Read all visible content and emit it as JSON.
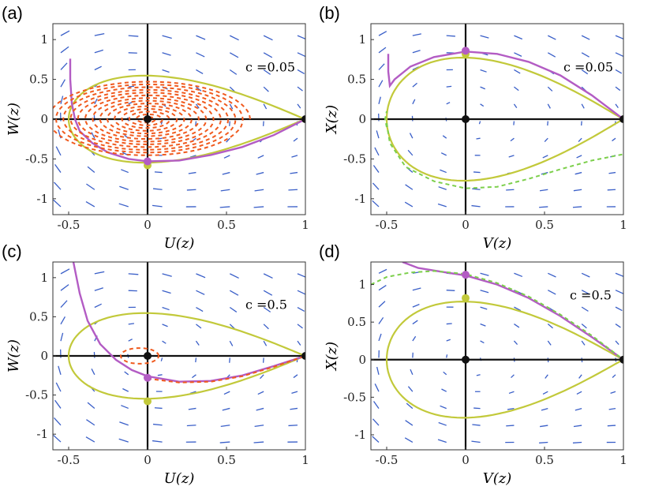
{
  "chart_data": [
    {
      "type": "phase-portrait",
      "panel_label": "(a)",
      "xlabel": "U(z)",
      "ylabel": "W(z)",
      "xlim": [
        -0.6,
        1.0
      ],
      "ylim": [
        -1.2,
        1.2
      ],
      "xticks": [
        {
          "v": -0.5,
          "t": "-0.5"
        },
        {
          "v": 0,
          "t": "0"
        },
        {
          "v": 0.5,
          "t": "0.5"
        },
        {
          "v": 1,
          "t": "1"
        }
      ],
      "yticks": [
        {
          "v": -1,
          "t": "-1"
        },
        {
          "v": -0.5,
          "t": "-0.5"
        },
        {
          "v": 0,
          "t": "0"
        },
        {
          "v": 0.5,
          "t": "0.5"
        },
        {
          "v": 1,
          "t": "1"
        }
      ],
      "annotation": {
        "text": "c =0.05",
        "x": 0.62,
        "y": 0.6
      },
      "field": {
        "x0": -0.55,
        "x1": 0.95,
        "nx": 8,
        "y0": -1.1,
        "y1": 1.05,
        "ny": 11,
        "color": "#3a5fc8",
        "scale": 0.9
      },
      "homoclinic": {
        "name": "homoclinic loop",
        "color": "#c2c93a",
        "half_height": 0.58
      },
      "curves": [
        {
          "name": "trajectory",
          "color": "#b35cc4",
          "dash": false,
          "points": [
            [
              -0.49,
              0.76
            ],
            [
              -0.49,
              0.5
            ],
            [
              -0.48,
              0.2
            ],
            [
              -0.46,
              0.0
            ],
            [
              -0.43,
              -0.15
            ],
            [
              -0.35,
              -0.3
            ],
            [
              -0.25,
              -0.42
            ],
            [
              -0.12,
              -0.5
            ],
            [
              0,
              -0.53
            ],
            [
              0.2,
              -0.52
            ],
            [
              0.4,
              -0.45
            ],
            [
              0.6,
              -0.35
            ],
            [
              0.8,
              -0.2
            ],
            [
              1,
              0
            ]
          ]
        },
        {
          "name": "spiral",
          "color": "#f05a1e",
          "dash": true,
          "spiral": {
            "turns": 14,
            "rx": 0.65,
            "ry": 0.48,
            "cx": 0.0,
            "cy": 0.0
          }
        }
      ],
      "points": [
        {
          "x": 0,
          "y": 0,
          "color": "#111"
        },
        {
          "x": 1,
          "y": 0,
          "color": "#111"
        },
        {
          "x": 0,
          "y": -0.58,
          "color": "#c2c93a"
        },
        {
          "x": 0,
          "y": -0.53,
          "color": "#b35cc4"
        }
      ]
    },
    {
      "type": "phase-portrait",
      "panel_label": "(b)",
      "xlabel": "V(z)",
      "ylabel": "X(z)",
      "xlim": [
        -0.6,
        1.0
      ],
      "ylim": [
        -1.2,
        1.2
      ],
      "xticks": [
        {
          "v": -0.5,
          "t": "-0.5"
        },
        {
          "v": 0,
          "t": "0"
        },
        {
          "v": 0.5,
          "t": "0.5"
        },
        {
          "v": 1,
          "t": "1"
        }
      ],
      "yticks": [
        {
          "v": -1,
          "t": "-1"
        },
        {
          "v": -0.5,
          "t": "-0.5"
        },
        {
          "v": 0,
          "t": "0"
        },
        {
          "v": 0.5,
          "t": "0.5"
        },
        {
          "v": 1,
          "t": "1"
        }
      ],
      "annotation": {
        "text": "c =0.05",
        "x": 0.62,
        "y": 0.6
      },
      "field": {
        "x0": -0.55,
        "x1": 0.95,
        "nx": 8,
        "y0": -1.1,
        "y1": 1.05,
        "ny": 11,
        "color": "#3a5fc8",
        "scale": 0.8
      },
      "homoclinic": {
        "name": "homoclinic loop",
        "color": "#c2c93a",
        "half_height": 0.82
      },
      "curves": [
        {
          "name": "trajectory",
          "color": "#b35cc4",
          "dash": false,
          "points": [
            [
              -0.49,
              0.82
            ],
            [
              -0.49,
              0.6
            ],
            [
              -0.48,
              0.42
            ],
            [
              -0.45,
              0.5
            ],
            [
              -0.35,
              0.66
            ],
            [
              -0.2,
              0.78
            ],
            [
              0,
              0.85
            ],
            [
              0.2,
              0.82
            ],
            [
              0.4,
              0.72
            ],
            [
              0.6,
              0.55
            ],
            [
              0.8,
              0.3
            ],
            [
              1,
              0
            ]
          ]
        },
        {
          "name": "dashed-branch-top",
          "color": "#7ccf4b",
          "dash": true,
          "points": [
            [
              -0.5,
              -0.1
            ],
            [
              -0.51,
              0.0
            ],
            [
              -0.5,
              0.1
            ]
          ]
        },
        {
          "name": "dashed-branch-bottom",
          "color": "#7ccf4b",
          "dash": true,
          "points": [
            [
              -0.5,
              -0.05
            ],
            [
              -0.48,
              -0.3
            ],
            [
              -0.38,
              -0.6
            ],
            [
              -0.2,
              -0.78
            ],
            [
              0,
              -0.87
            ],
            [
              0.2,
              -0.85
            ],
            [
              0.4,
              -0.75
            ],
            [
              0.6,
              -0.63
            ],
            [
              0.8,
              -0.52
            ],
            [
              1,
              -0.44
            ]
          ]
        }
      ],
      "points": [
        {
          "x": 0,
          "y": 0,
          "color": "#111"
        },
        {
          "x": 1,
          "y": 0,
          "color": "#111"
        },
        {
          "x": 0,
          "y": 0.82,
          "color": "#c2c93a"
        },
        {
          "x": 0,
          "y": 0.86,
          "color": "#b35cc4"
        }
      ]
    },
    {
      "type": "phase-portrait",
      "panel_label": "(c)",
      "xlabel": "U(z)",
      "ylabel": "W(z)",
      "xlim": [
        -0.6,
        1.0
      ],
      "ylim": [
        -1.2,
        1.2
      ],
      "xticks": [
        {
          "v": -0.5,
          "t": "-0.5"
        },
        {
          "v": 0,
          "t": "0"
        },
        {
          "v": 0.5,
          "t": "0.5"
        },
        {
          "v": 1,
          "t": "1"
        }
      ],
      "yticks": [
        {
          "v": -1,
          "t": "-1"
        },
        {
          "v": -0.5,
          "t": "-0.5"
        },
        {
          "v": 0,
          "t": "0"
        },
        {
          "v": 0.5,
          "t": "0.5"
        },
        {
          "v": 1,
          "t": "1"
        }
      ],
      "annotation": {
        "text": "c =0.5",
        "x": 0.62,
        "y": 0.6
      },
      "field": {
        "x0": -0.55,
        "x1": 0.95,
        "nx": 8,
        "y0": -1.1,
        "y1": 1.05,
        "ny": 11,
        "color": "#3a5fc8",
        "scale": 0.9
      },
      "homoclinic": {
        "name": "homoclinic loop",
        "color": "#c2c93a",
        "half_height": 0.58
      },
      "curves": [
        {
          "name": "trajectory",
          "color": "#b35cc4",
          "dash": false,
          "points": [
            [
              -0.47,
              1.2
            ],
            [
              -0.43,
              0.8
            ],
            [
              -0.38,
              0.45
            ],
            [
              -0.3,
              0.15
            ],
            [
              -0.2,
              -0.05
            ],
            [
              -0.1,
              -0.18
            ],
            [
              0,
              -0.26
            ],
            [
              0.2,
              -0.33
            ],
            [
              0.4,
              -0.32
            ],
            [
              0.6,
              -0.25
            ],
            [
              0.8,
              -0.13
            ],
            [
              1,
              0
            ]
          ]
        },
        {
          "name": "dashed-ring",
          "color": "#f05a1e",
          "dash": true,
          "ellipse": {
            "cx": -0.05,
            "cy": 0.0,
            "rx": 0.12,
            "ry": 0.1
          }
        },
        {
          "name": "dashed-lower",
          "color": "#f05a1e",
          "dash": true,
          "points": [
            [
              0,
              -0.29
            ],
            [
              0.2,
              -0.34
            ],
            [
              0.4,
              -0.33
            ],
            [
              0.6,
              -0.26
            ],
            [
              0.8,
              -0.14
            ],
            [
              1,
              0
            ]
          ]
        }
      ],
      "points": [
        {
          "x": 0,
          "y": 0,
          "color": "#111"
        },
        {
          "x": 1,
          "y": 0,
          "color": "#111"
        },
        {
          "x": 0,
          "y": -0.58,
          "color": "#c2c93a"
        },
        {
          "x": 0,
          "y": -0.28,
          "color": "#b35cc4"
        }
      ]
    },
    {
      "type": "phase-portrait",
      "panel_label": "(d)",
      "xlabel": "V(z)",
      "ylabel": "X(z)",
      "xlim": [
        -0.6,
        1.0
      ],
      "ylim": [
        -1.2,
        1.3
      ],
      "xticks": [
        {
          "v": -0.5,
          "t": "-0.5"
        },
        {
          "v": 0,
          "t": "0"
        },
        {
          "v": 0.5,
          "t": "0.5"
        },
        {
          "v": 1,
          "t": "1"
        }
      ],
      "yticks": [
        {
          "v": -1,
          "t": "-1"
        },
        {
          "v": -0.5,
          "t": "-0.5"
        },
        {
          "v": 0,
          "t": "0"
        },
        {
          "v": 0.5,
          "t": "0.5"
        },
        {
          "v": 1,
          "t": "1"
        }
      ],
      "annotation": {
        "text": "c =0.5",
        "x": 0.66,
        "y": 0.8
      },
      "field": {
        "x0": -0.55,
        "x1": 0.95,
        "nx": 8,
        "y0": -1.1,
        "y1": 1.15,
        "ny": 11,
        "color": "#3a5fc8",
        "scale": 0.8
      },
      "homoclinic": {
        "name": "homoclinic loop",
        "color": "#c2c93a",
        "half_height": 0.82
      },
      "curves": [
        {
          "name": "trajectory",
          "color": "#b35cc4",
          "dash": false,
          "points": [
            [
              -0.4,
              1.3
            ],
            [
              -0.3,
              1.22
            ],
            [
              -0.15,
              1.17
            ],
            [
              0,
              1.12
            ],
            [
              0.2,
              1.0
            ],
            [
              0.4,
              0.82
            ],
            [
              0.6,
              0.58
            ],
            [
              0.8,
              0.3
            ],
            [
              1,
              0
            ]
          ]
        },
        {
          "name": "dashed-branch",
          "color": "#7ccf4b",
          "dash": true,
          "points": [
            [
              -0.6,
              1.0
            ],
            [
              -0.5,
              1.1
            ],
            [
              -0.35,
              1.16
            ],
            [
              -0.2,
              1.18
            ],
            [
              0,
              1.14
            ],
            [
              0.2,
              1.02
            ],
            [
              0.4,
              0.84
            ],
            [
              0.6,
              0.6
            ],
            [
              0.8,
              0.32
            ],
            [
              1,
              0
            ]
          ]
        }
      ],
      "points": [
        {
          "x": 0,
          "y": 0,
          "color": "#111"
        },
        {
          "x": 1,
          "y": 0,
          "color": "#111"
        },
        {
          "x": 0,
          "y": 0.82,
          "color": "#c2c93a"
        },
        {
          "x": 0,
          "y": 1.13,
          "color": "#b35cc4"
        }
      ]
    }
  ]
}
